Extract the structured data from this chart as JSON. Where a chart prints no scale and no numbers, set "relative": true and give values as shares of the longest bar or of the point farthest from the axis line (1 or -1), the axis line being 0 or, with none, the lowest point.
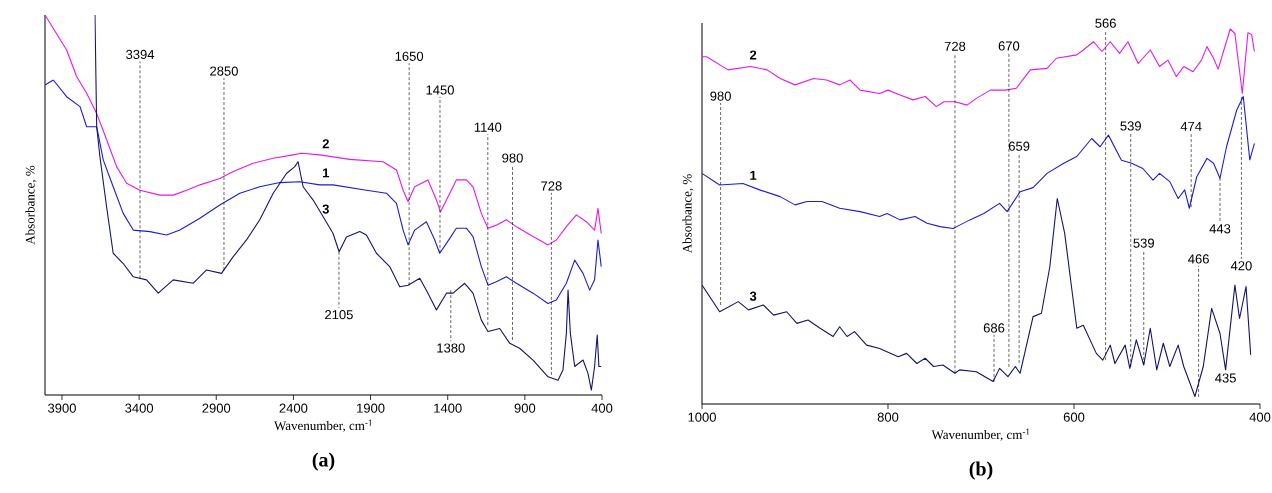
{
  "chart_data": [
    {
      "type": "line",
      "title": "(a)",
      "xlabel": "Wavenumber, cm$^{-1}$",
      "ylabel": "Absorbance, %",
      "relative": true,
      "tick_labels": "x",
      "xlim": [
        4010,
        400
      ],
      "xticks": [
        3900,
        3400,
        2900,
        2400,
        1900,
        1400,
        900,
        400
      ],
      "series": [
        {
          "name": "1",
          "color": "#1e1ecc",
          "x": [
            4010,
            3956,
            3870,
            3783,
            3740,
            3675,
            3632,
            3568,
            3503,
            3438,
            3330,
            3222,
            3136,
            3006,
            2877,
            2747,
            2618,
            2488,
            2359,
            2229,
            2143,
            1927,
            1797,
            1732,
            1689,
            1657,
            1614,
            1538,
            1484,
            1452,
            1408,
            1344,
            1279,
            1236,
            1182,
            1139,
            1085,
            1020,
            955,
            847,
            750,
            696,
            631,
            577,
            523,
            480,
            448,
            426,
            405
          ],
          "values": [
            0.816,
            0.829,
            0.785,
            0.759,
            0.706,
            0.706,
            0.618,
            0.548,
            0.478,
            0.434,
            0.43,
            0.421,
            0.434,
            0.465,
            0.5,
            0.531,
            0.548,
            0.559,
            0.561,
            0.553,
            0.553,
            0.539,
            0.531,
            0.504,
            0.434,
            0.395,
            0.434,
            0.456,
            0.408,
            0.373,
            0.399,
            0.439,
            0.439,
            0.417,
            0.338,
            0.289,
            0.298,
            0.311,
            0.294,
            0.268,
            0.241,
            0.25,
            0.294,
            0.355,
            0.32,
            0.276,
            0.303,
            0.408,
            0.338
          ]
        },
        {
          "name": "2",
          "color": "#e619e6",
          "x": [
            4010,
            3934,
            3870,
            3805,
            3740,
            3675,
            3610,
            3546,
            3481,
            3395,
            3265,
            3179,
            3092,
            3006,
            2877,
            2790,
            2661,
            2531,
            2402,
            2348,
            2229,
            2035,
            1819,
            1732,
            1689,
            1657,
            1614,
            1528,
            1473,
            1447,
            1408,
            1344,
            1279,
            1236,
            1182,
            1139,
            1085,
            1020,
            955,
            847,
            750,
            696,
            631,
            566,
            502,
            448,
            426,
            405
          ],
          "values": [
            1.0,
            0.95,
            0.908,
            0.838,
            0.794,
            0.741,
            0.671,
            0.601,
            0.557,
            0.539,
            0.526,
            0.526,
            0.539,
            0.553,
            0.57,
            0.588,
            0.61,
            0.623,
            0.632,
            0.636,
            0.632,
            0.62,
            0.614,
            0.592,
            0.539,
            0.509,
            0.548,
            0.566,
            0.513,
            0.482,
            0.513,
            0.566,
            0.566,
            0.548,
            0.478,
            0.439,
            0.447,
            0.461,
            0.443,
            0.417,
            0.395,
            0.408,
            0.443,
            0.474,
            0.456,
            0.434,
            0.491,
            0.425
          ]
        },
        {
          "name": "3",
          "color": "#14146e",
          "x": [
            3686,
            3675,
            3654,
            3611,
            3568,
            3503,
            3438,
            3352,
            3276,
            3179,
            3050,
            2963,
            2866,
            2790,
            2704,
            2618,
            2531,
            2445,
            2391,
            2370,
            2337,
            2272,
            2207,
            2143,
            2104,
            2056,
            1970,
            1927,
            1862,
            1776,
            1711,
            1657,
            1581,
            1528,
            1473,
            1408,
            1365,
            1290,
            1236,
            1182,
            1139,
            1063,
            998,
            934,
            847,
            750,
            685,
            653,
            631,
            620,
            605,
            577,
            523,
            491,
            469,
            448,
            431,
            420,
            405
          ],
          "values": [
            1.0,
            0.706,
            0.627,
            0.496,
            0.373,
            0.346,
            0.311,
            0.303,
            0.268,
            0.303,
            0.294,
            0.329,
            0.32,
            0.364,
            0.408,
            0.461,
            0.531,
            0.583,
            0.601,
            0.614,
            0.548,
            0.513,
            0.469,
            0.425,
            0.377,
            0.416,
            0.43,
            0.421,
            0.373,
            0.338,
            0.285,
            0.289,
            0.307,
            0.268,
            0.224,
            0.268,
            0.268,
            0.294,
            0.268,
            0.197,
            0.167,
            0.175,
            0.136,
            0.123,
            0.092,
            0.048,
            0.039,
            0.066,
            0.162,
            0.276,
            0.162,
            0.075,
            0.092,
            0.057,
            0.013,
            0.075,
            0.158,
            0.075,
            0.075
          ]
        }
      ],
      "annotations": [
        {
          "text": "3394",
          "x": 3394,
          "y": 0.307
        },
        {
          "text": "2850",
          "x": 2850,
          "y": 0.329
        },
        {
          "text": "1650",
          "x": 1650,
          "y": 0.289
        },
        {
          "text": "1450",
          "x": 1450,
          "y": 0.374
        },
        {
          "text": "1140",
          "x": 1140,
          "y": 0.184
        },
        {
          "text": "980",
          "x": 980,
          "y": 0.145
        },
        {
          "text": "728",
          "x": 728,
          "y": 0.053
        },
        {
          "text": "2105",
          "x": 2105,
          "y": 0.377
        },
        {
          "text": "1380",
          "x": 1380,
          "y": 0.276
        }
      ]
    },
    {
      "type": "line",
      "title": "(b)",
      "xlabel": "Wavenumber, cm$^{-1}$",
      "ylabel": "Absorbance, %",
      "relative": true,
      "tick_labels": "x",
      "xlim": [
        1000,
        400
      ],
      "xticks": [
        1000,
        800,
        600,
        400
      ],
      "series": [
        {
          "name": "1",
          "color": "#1e1ecc",
          "x": [
            1000,
            981,
            956,
            938,
            916,
            900,
            887,
            871,
            852,
            830,
            809,
            801,
            787,
            771,
            758,
            744,
            730,
            726,
            712,
            697,
            680,
            672,
            658,
            644,
            629,
            611,
            597,
            581,
            572,
            563,
            549,
            538,
            526,
            515,
            508,
            497,
            488,
            481,
            476,
            468,
            457,
            450,
            443,
            436,
            425,
            418,
            411,
            406
          ],
          "values": [
            0.615,
            0.584,
            0.588,
            0.571,
            0.553,
            0.531,
            0.54,
            0.54,
            0.522,
            0.513,
            0.5,
            0.508,
            0.491,
            0.5,
            0.482,
            0.473,
            0.468,
            0.473,
            0.491,
            0.508,
            0.535,
            0.513,
            0.566,
            0.577,
            0.615,
            0.642,
            0.66,
            0.708,
            0.686,
            0.717,
            0.65,
            0.642,
            0.628,
            0.597,
            0.615,
            0.593,
            0.548,
            0.571,
            0.522,
            0.606,
            0.655,
            0.642,
            0.602,
            0.686,
            0.784,
            0.82,
            0.651,
            0.695
          ]
        },
        {
          "name": "2",
          "color": "#e619e6",
          "x": [
            1000,
            995,
            972,
            948,
            930,
            916,
            900,
            880,
            866,
            852,
            841,
            830,
            809,
            800,
            787,
            773,
            760,
            748,
            740,
            728,
            715,
            705,
            690,
            674,
            662,
            647,
            629,
            619,
            597,
            590,
            579,
            570,
            561,
            551,
            542,
            531,
            518,
            508,
            499,
            490,
            482,
            472,
            463,
            457,
            450,
            445,
            432,
            427,
            419,
            413,
            409,
            406
          ],
          "values": [
            0.926,
            0.926,
            0.891,
            0.9,
            0.891,
            0.868,
            0.851,
            0.868,
            0.864,
            0.851,
            0.864,
            0.837,
            0.828,
            0.837,
            0.824,
            0.811,
            0.82,
            0.793,
            0.806,
            0.806,
            0.797,
            0.815,
            0.837,
            0.837,
            0.842,
            0.891,
            0.895,
            0.922,
            0.931,
            0.944,
            0.966,
            0.94,
            0.966,
            0.935,
            0.966,
            0.908,
            0.944,
            0.9,
            0.917,
            0.873,
            0.9,
            0.886,
            0.917,
            0.953,
            0.922,
            0.893,
            1.0,
            0.988,
            0.828,
            0.99,
            0.985,
            0.94
          ]
        },
        {
          "name": "3",
          "color": "#14146e",
          "x": [
            1000,
            981,
            961,
            950,
            934,
            923,
            909,
            898,
            886,
            873,
            859,
            852,
            844,
            836,
            823,
            809,
            789,
            780,
            769,
            760,
            751,
            741,
            728,
            723,
            705,
            687,
            680,
            671,
            663,
            658,
            644,
            635,
            626,
            618,
            610,
            597,
            590,
            576,
            569,
            561,
            556,
            545,
            540,
            533,
            525,
            518,
            511,
            504,
            497,
            488,
            482,
            470,
            461,
            452,
            443,
            437,
            427,
            422,
            415,
            410
          ],
          "values": [
            0.317,
            0.246,
            0.273,
            0.251,
            0.264,
            0.237,
            0.246,
            0.215,
            0.224,
            0.202,
            0.18,
            0.206,
            0.18,
            0.193,
            0.157,
            0.148,
            0.126,
            0.135,
            0.108,
            0.122,
            0.1,
            0.104,
            0.082,
            0.091,
            0.086,
            0.06,
            0.095,
            0.073,
            0.1,
            0.082,
            0.233,
            0.242,
            0.366,
            0.548,
            0.455,
            0.202,
            0.21,
            0.135,
            0.117,
            0.157,
            0.108,
            0.157,
            0.095,
            0.171,
            0.104,
            0.202,
            0.091,
            0.162,
            0.1,
            0.157,
            0.1,
            0.02,
            0.1,
            0.255,
            0.188,
            0.091,
            0.317,
            0.228,
            0.313,
            0.131
          ]
        }
      ],
      "annotations": [
        {
          "text": "980",
          "x": 980,
          "y": 0.264
        },
        {
          "text": "728",
          "x": 728,
          "y": 0.082
        },
        {
          "text": "670",
          "x": 670,
          "y": 0.099
        },
        {
          "text": "566",
          "x": 566,
          "y": 0.117
        },
        {
          "text": "659",
          "x": 659,
          "y": 0.109
        },
        {
          "text": "539",
          "x": 539,
          "y": 0.099
        },
        {
          "text": "474",
          "x": 474,
          "y": 0.525
        },
        {
          "text": "443",
          "x": 443,
          "y": 0.603
        },
        {
          "text": "539",
          "x": 525,
          "y": 0.104
        },
        {
          "text": "466",
          "x": 466,
          "y": 0.019
        },
        {
          "text": "420",
          "x": 420,
          "y": 0.819
        },
        {
          "text": "686",
          "x": 686,
          "y": 0.059
        },
        {
          "text": "435",
          "x": 437,
          "y": 0.091
        }
      ]
    }
  ]
}
